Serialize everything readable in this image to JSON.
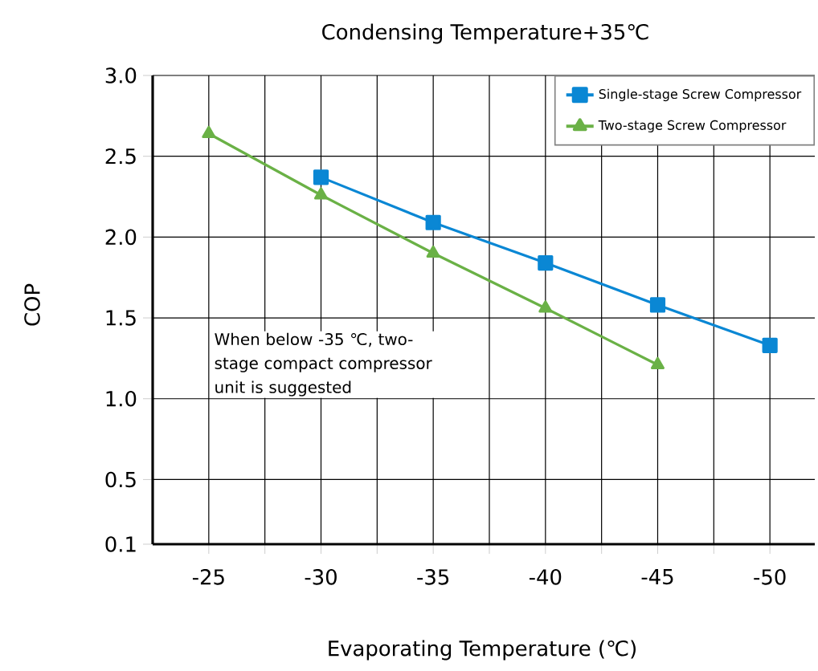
{
  "chart_data": {
    "type": "line",
    "title": "Condensing Temperature+35℃",
    "xlabel": "Evaporating Temperature (℃)",
    "ylabel": "COP",
    "x": [
      -25,
      -30,
      -35,
      -40,
      -45,
      -50
    ],
    "xlim": [
      -22.5,
      -52
    ],
    "xticks": [
      -25,
      {
        "value": -27.5,
        "label": null
      },
      -30,
      {
        "value": -32.5,
        "label": null
      },
      -35,
      {
        "value": -37.5,
        "label": null
      },
      -40,
      {
        "value": -42.5,
        "label": null
      },
      -45,
      {
        "value": -47.5,
        "label": null
      },
      -50
    ],
    "ylim": [
      0.1,
      3.0
    ],
    "yticks": [
      0.1,
      0.5,
      {
        "value": 1,
        "label": "1.0"
      },
      1.5,
      {
        "value": 2,
        "label": "2.0"
      },
      2.5,
      {
        "value": 3,
        "label": "3.0"
      }
    ],
    "grid": true,
    "legend": "top right",
    "annotations": [
      "When below -35 ℃, two-stage compact compressor unit is suggested"
    ],
    "series": [
      {
        "name": "Single-stage Screw Compressor",
        "color": "#0a87d4",
        "marker": "square",
        "values": [
          null,
          2.37,
          2.09,
          1.84,
          1.58,
          1.33
        ]
      },
      {
        "name": "Two-stage Screw Compressor",
        "color": "#6ab146",
        "marker": "triangle",
        "values": [
          2.64,
          2.26,
          1.9,
          1.56,
          1.21,
          null
        ]
      }
    ]
  }
}
